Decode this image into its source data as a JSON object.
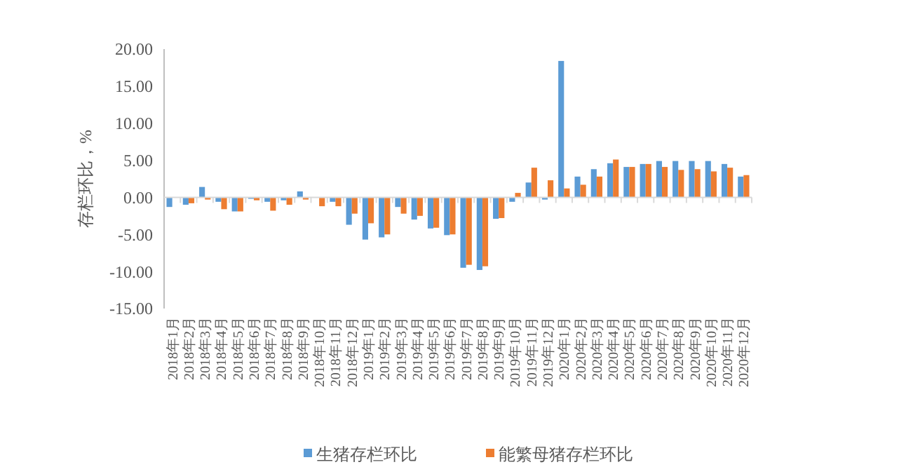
{
  "chart_data": {
    "type": "bar",
    "ylabel": "存栏环比，%",
    "categories": [
      "2018年1月",
      "2018年2月",
      "2018年3月",
      "2018年4月",
      "2018年5月",
      "2018年6月",
      "2018年7月",
      "2018年8月",
      "2018年9月",
      "2018年10月",
      "2018年11月",
      "2018年12月",
      "2019年1月",
      "2019年2月",
      "2019年3月",
      "2019年4月",
      "2019年5月",
      "2019年6月",
      "2019年7月",
      "2019年8月",
      "2019年9月",
      "2019年10月",
      "2019年11月",
      "2019年12月",
      "2020年1月",
      "2020年2月",
      "2020年3月",
      "2020年4月",
      "2020年5月",
      "2020年6月",
      "2020年7月",
      "2020年8月",
      "2020年9月",
      "2020年10月",
      "2020年11月",
      "2020年12月"
    ],
    "series": [
      {
        "name": "生猪存栏环比",
        "color": "#5b9bd5",
        "values": [
          -1.3,
          -1.0,
          1.4,
          -0.6,
          -1.9,
          -0.2,
          -0.6,
          -0.4,
          0.8,
          null,
          -0.6,
          -3.7,
          -5.7,
          -5.4,
          -1.3,
          -3.0,
          -4.2,
          -5.1,
          -9.5,
          -9.8,
          -2.9,
          -0.6,
          2.0,
          -0.3,
          18.4,
          2.8,
          3.8,
          4.6,
          4.1,
          4.5,
          4.9,
          4.9,
          4.9,
          4.9,
          4.5,
          2.8
        ]
      },
      {
        "name": "能繁母猪存栏环比",
        "color": "#ed7d31",
        "values": [
          null,
          -0.8,
          -0.3,
          -1.6,
          -1.9,
          -0.4,
          -1.8,
          -1.0,
          -0.3,
          -1.2,
          -1.2,
          -2.2,
          -3.5,
          -5.0,
          -2.2,
          -2.5,
          -4.1,
          -5.0,
          -9.1,
          -9.3,
          -2.8,
          0.6,
          4.0,
          2.3,
          1.2,
          1.7,
          2.8,
          5.1,
          4.1,
          4.5,
          4.1,
          3.7,
          3.8,
          3.5,
          4.0,
          3.0
        ]
      }
    ],
    "ylim": [
      -15,
      20
    ],
    "yticks": [
      {
        "value": -15,
        "label": "-15.00"
      },
      {
        "value": -10,
        "label": "-10.00"
      },
      {
        "value": -5,
        "label": "-5.00"
      },
      {
        "value": 0,
        "label": "0.00"
      },
      {
        "value": 5,
        "label": "5.00"
      },
      {
        "value": 10,
        "label": "10.00"
      },
      {
        "value": 15,
        "label": "15.00"
      },
      {
        "value": 20,
        "label": "20.00"
      }
    ],
    "legend": "bottom"
  }
}
